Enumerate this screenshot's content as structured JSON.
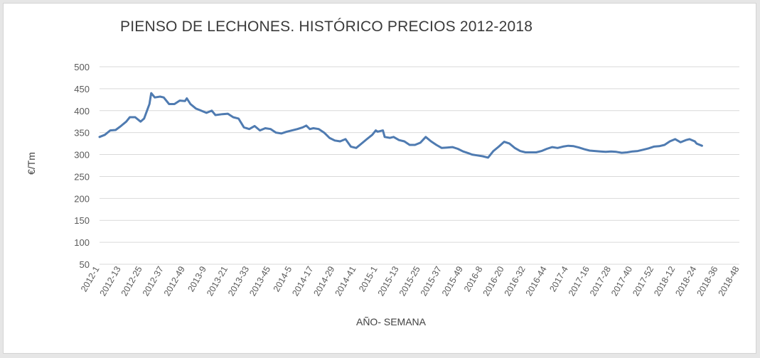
{
  "chart_data": {
    "type": "line",
    "title": "PIENSO DE LECHONES. HISTÓRICO PRECIOS 2012-2018",
    "xlabel": "AÑO- SEMANA",
    "ylabel": "€/Tm",
    "ylim": [
      50,
      500
    ],
    "yticks": [
      50,
      100,
      150,
      200,
      250,
      300,
      350,
      400,
      450,
      500
    ],
    "grid": true,
    "legend": "none",
    "x_tick_labels": [
      "2012-1",
      "2012-13",
      "2012-25",
      "2012-37",
      "2012-49",
      "2013-9",
      "2013-21",
      "2013-33",
      "2013-45",
      "2014-5",
      "2014-17",
      "2014-29",
      "2014-41",
      "2015-1",
      "2015-13",
      "2015-25",
      "2015-37",
      "2015-49",
      "2016-8",
      "2016-20",
      "2016-32",
      "2016-44",
      "2017-4",
      "2017-16",
      "2017-28",
      "2017-40",
      "2017-52",
      "2018-12",
      "2018-24",
      "2018-36",
      "2018-48"
    ],
    "series": [
      {
        "color": "#4f7bb1",
        "points": [
          [
            "2012-1",
            340
          ],
          [
            "2012-4",
            345
          ],
          [
            "2012-7",
            355
          ],
          [
            "2012-10",
            356
          ],
          [
            "2012-13",
            365
          ],
          [
            "2012-16",
            375
          ],
          [
            "2012-18",
            385
          ],
          [
            "2012-21",
            385
          ],
          [
            "2012-24",
            375
          ],
          [
            "2012-26",
            382
          ],
          [
            "2012-29",
            415
          ],
          [
            "2012-30",
            440
          ],
          [
            "2012-32",
            430
          ],
          [
            "2012-35",
            432
          ],
          [
            "2012-37",
            430
          ],
          [
            "2012-40",
            415
          ],
          [
            "2012-43",
            415
          ],
          [
            "2012-46",
            423
          ],
          [
            "2012-49",
            422
          ],
          [
            "2012-50",
            428
          ],
          [
            "2012-52",
            415
          ],
          [
            "2013-3",
            405
          ],
          [
            "2013-6",
            400
          ],
          [
            "2013-9",
            395
          ],
          [
            "2013-12",
            400
          ],
          [
            "2013-14",
            390
          ],
          [
            "2013-18",
            392
          ],
          [
            "2013-21",
            393
          ],
          [
            "2013-24",
            385
          ],
          [
            "2013-27",
            382
          ],
          [
            "2013-30",
            362
          ],
          [
            "2013-33",
            358
          ],
          [
            "2013-36",
            365
          ],
          [
            "2013-39",
            355
          ],
          [
            "2013-42",
            360
          ],
          [
            "2013-45",
            358
          ],
          [
            "2013-48",
            350
          ],
          [
            "2013-51",
            348
          ],
          [
            "2014-2",
            352
          ],
          [
            "2014-5",
            355
          ],
          [
            "2014-8",
            358
          ],
          [
            "2014-11",
            362
          ],
          [
            "2014-13",
            366
          ],
          [
            "2014-15",
            358
          ],
          [
            "2014-17",
            360
          ],
          [
            "2014-20",
            358
          ],
          [
            "2014-23",
            350
          ],
          [
            "2014-26",
            338
          ],
          [
            "2014-29",
            332
          ],
          [
            "2014-32",
            330
          ],
          [
            "2014-35",
            335
          ],
          [
            "2014-38",
            318
          ],
          [
            "2014-41",
            315
          ],
          [
            "2014-44",
            325
          ],
          [
            "2014-47",
            335
          ],
          [
            "2014-50",
            345
          ],
          [
            "2014-52",
            355
          ],
          [
            "2015-1",
            352
          ],
          [
            "2015-4",
            355
          ],
          [
            "2015-5",
            340
          ],
          [
            "2015-8",
            338
          ],
          [
            "2015-10",
            340
          ],
          [
            "2015-13",
            333
          ],
          [
            "2015-16",
            330
          ],
          [
            "2015-19",
            322
          ],
          [
            "2015-22",
            322
          ],
          [
            "2015-25",
            327
          ],
          [
            "2015-28",
            340
          ],
          [
            "2015-31",
            330
          ],
          [
            "2015-34",
            322
          ],
          [
            "2015-37",
            315
          ],
          [
            "2015-40",
            316
          ],
          [
            "2015-43",
            317
          ],
          [
            "2015-46",
            313
          ],
          [
            "2015-49",
            307
          ],
          [
            "2015-52",
            303
          ],
          [
            "2016-2",
            300
          ],
          [
            "2016-5",
            298
          ],
          [
            "2016-8",
            296
          ],
          [
            "2016-11",
            293
          ],
          [
            "2016-14",
            308
          ],
          [
            "2016-17",
            318
          ],
          [
            "2016-20",
            329
          ],
          [
            "2016-23",
            325
          ],
          [
            "2016-26",
            315
          ],
          [
            "2016-29",
            308
          ],
          [
            "2016-32",
            305
          ],
          [
            "2016-35",
            305
          ],
          [
            "2016-38",
            305
          ],
          [
            "2016-41",
            308
          ],
          [
            "2016-44",
            313
          ],
          [
            "2016-47",
            317
          ],
          [
            "2016-50",
            315
          ],
          [
            "2017-1",
            318
          ],
          [
            "2017-4",
            320
          ],
          [
            "2017-7",
            319
          ],
          [
            "2017-10",
            316
          ],
          [
            "2017-13",
            312
          ],
          [
            "2017-16",
            309
          ],
          [
            "2017-19",
            308
          ],
          [
            "2017-22",
            307
          ],
          [
            "2017-25",
            306
          ],
          [
            "2017-28",
            307
          ],
          [
            "2017-31",
            306
          ],
          [
            "2017-34",
            304
          ],
          [
            "2017-37",
            305
          ],
          [
            "2017-40",
            307
          ],
          [
            "2017-43",
            308
          ],
          [
            "2017-46",
            311
          ],
          [
            "2017-49",
            314
          ],
          [
            "2017-52",
            318
          ],
          [
            "2018-3",
            319
          ],
          [
            "2018-6",
            322
          ],
          [
            "2018-9",
            330
          ],
          [
            "2018-12",
            335
          ],
          [
            "2018-15",
            328
          ],
          [
            "2018-18",
            333
          ],
          [
            "2018-20",
            335
          ],
          [
            "2018-23",
            330
          ],
          [
            "2018-24",
            325
          ],
          [
            "2018-27",
            320
          ]
        ]
      }
    ]
  }
}
